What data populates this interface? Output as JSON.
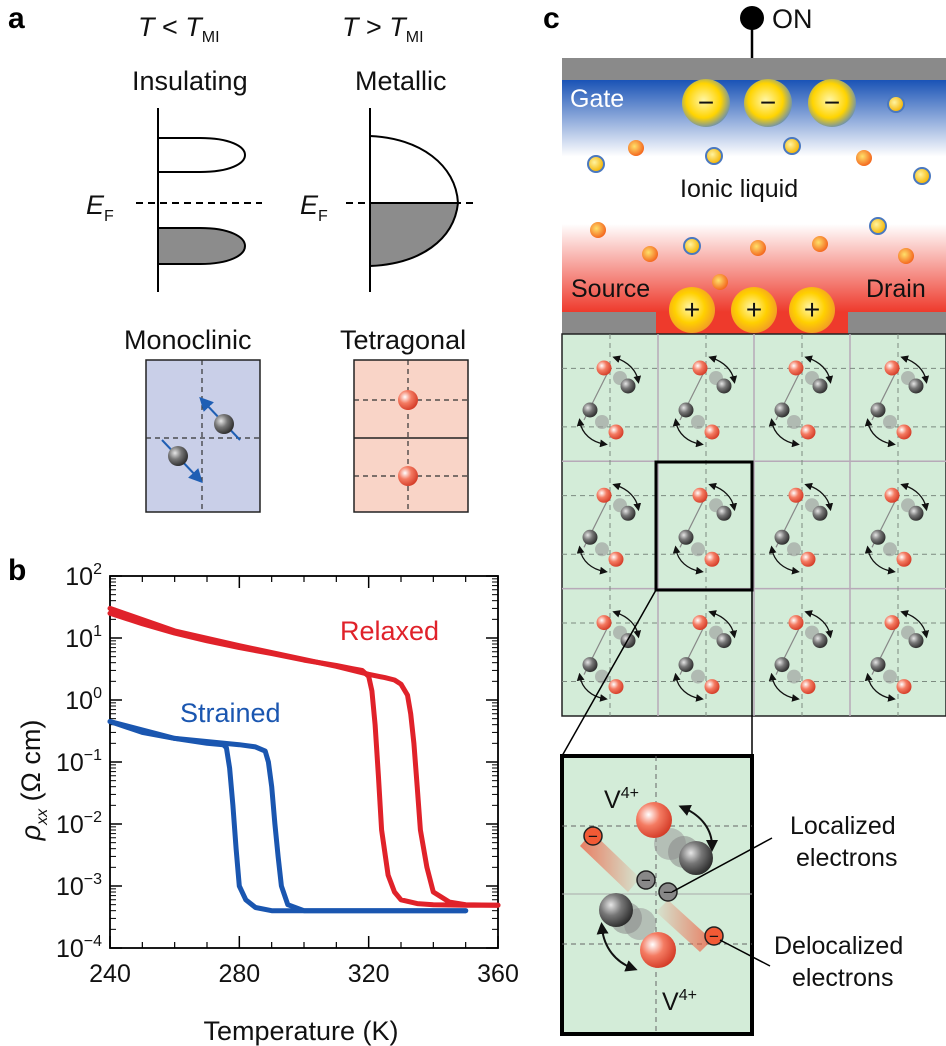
{
  "panel_a": {
    "letter": "a",
    "cond_low": {
      "T": "T",
      "op": " < ",
      "T2": "T",
      "sub": "MI"
    },
    "cond_high": {
      "T": "T",
      "op": " > ",
      "T2": "T",
      "sub": "MI"
    },
    "insulating": "Insulating",
    "metallic": "Metallic",
    "fermi": {
      "E": "E",
      "sub": "F"
    },
    "monoclinic": "Monoclinic",
    "tetragonal": "Tetragonal",
    "colors": {
      "mono_bg": "#c9cfe8",
      "tetra_bg": "#f9d4c7",
      "arrow": "#1f5fb4",
      "band_fill": "#8c8c8c"
    }
  },
  "panel_b": {
    "letter": "b",
    "xlabel": "Temperature (K)",
    "ylabel": {
      "rho": "ρ",
      "sub": "xx",
      "unit": " (Ω cm)"
    },
    "series_labels": {
      "relaxed": "Relaxed",
      "strained": "Strained"
    },
    "colors": {
      "relaxed": "#e0222a",
      "strained": "#1a56b0"
    }
  },
  "chart_data": {
    "type": "line",
    "xlabel": "Temperature (K)",
    "ylabel": "ρxx (Ω cm)",
    "xlim": [
      240,
      360
    ],
    "ylim": [
      0.0001,
      100
    ],
    "yscale": "log",
    "x_ticks": [
      "240",
      "280",
      "320",
      "360"
    ],
    "y_ticks": [
      {
        "base": "10",
        "exp": "2"
      },
      {
        "base": "10",
        "exp": "1"
      },
      {
        "base": "10",
        "exp": "0"
      },
      {
        "base": "10",
        "exp": "−1"
      },
      {
        "base": "10",
        "exp": "−2"
      },
      {
        "base": "10",
        "exp": "−3"
      },
      {
        "base": "10",
        "exp": "−4"
      }
    ],
    "series": [
      {
        "name": "Relaxed",
        "x": [
          240,
          250,
          260,
          270,
          280,
          290,
          300,
          310,
          315,
          318,
          320,
          321,
          322,
          323,
          324,
          326,
          328,
          330,
          335,
          340,
          350,
          360
        ],
        "y": [
          25,
          17,
          12,
          9,
          7,
          5.6,
          4.4,
          3.6,
          3.2,
          3.0,
          2.4,
          1.4,
          0.4,
          0.06,
          0.008,
          0.0015,
          0.0008,
          0.0006,
          0.00052,
          0.0005,
          0.00049,
          0.00049
        ]
      },
      {
        "name": "Relaxed",
        "x": [
          240,
          260,
          280,
          300,
          310,
          320,
          325,
          328,
          330,
          332,
          333,
          334,
          335,
          336,
          338,
          340,
          345,
          350,
          360
        ],
        "y": [
          30,
          13,
          7.5,
          4.5,
          3.5,
          2.6,
          2.3,
          2.1,
          1.8,
          1.2,
          0.6,
          0.2,
          0.04,
          0.008,
          0.002,
          0.0008,
          0.00055,
          0.0005,
          0.00049
        ]
      },
      {
        "name": "Strained",
        "x": [
          240,
          250,
          260,
          270,
          275,
          276,
          277,
          278,
          279,
          280,
          282,
          285,
          290,
          300,
          320,
          340,
          350
        ],
        "y": [
          0.45,
          0.3,
          0.24,
          0.2,
          0.19,
          0.17,
          0.08,
          0.02,
          0.004,
          0.001,
          0.0006,
          0.00045,
          0.0004,
          0.0004,
          0.0004,
          0.0004,
          0.0004
        ]
      },
      {
        "name": "Strained",
        "x": [
          240,
          260,
          280,
          285,
          288,
          289,
          290,
          291,
          292,
          293,
          295,
          300,
          310,
          330,
          350
        ],
        "y": [
          0.45,
          0.24,
          0.19,
          0.175,
          0.15,
          0.1,
          0.04,
          0.01,
          0.003,
          0.001,
          0.0005,
          0.0004,
          0.0004,
          0.0004,
          0.0004
        ]
      }
    ]
  },
  "panel_c": {
    "letter": "c",
    "on": "ON",
    "gate": "Gate",
    "ionic_liquid": "Ionic liquid",
    "source": "Source",
    "drain": "Drain",
    "minus": "−",
    "plus": "+",
    "v4": {
      "base": "V",
      "sup": "4+"
    },
    "localized": [
      "Localized",
      "electrons"
    ],
    "delocalized": [
      "Delocalized",
      "electrons"
    ],
    "colors": {
      "lattice_bg": "#d3ecd8",
      "gate_blue": "#1e56b8",
      "liquid_red": "#ee3a2c",
      "contact_gray": "#8a8a8a",
      "ion_yellow": "#ffd41a",
      "ion_red": "#f25a35"
    }
  }
}
